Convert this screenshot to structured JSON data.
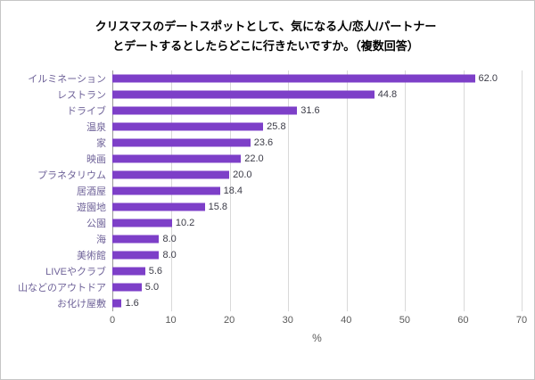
{
  "title": {
    "line1": "クリスマスのデートスポットとして、気になる人/恋人/パートナー",
    "line2": "とデートするとしたらどこに行きたいですか。（複数回答）"
  },
  "chart_data": {
    "type": "bar",
    "orientation": "horizontal",
    "title": "クリスマスのデートスポットとして、気になる人/恋人/パートナーとデートするとしたらどこに行きたいですか。（複数回答）",
    "categories": [
      "イルミネーション",
      "レストラン",
      "ドライブ",
      "温泉",
      "家",
      "映画",
      "プラネタリウム",
      "居酒屋",
      "遊園地",
      "公園",
      "海",
      "美術館",
      "LIVEやクラブ",
      "山などのアウトドア",
      "お化け屋敷"
    ],
    "values": [
      62.0,
      44.8,
      31.6,
      25.8,
      23.6,
      22.0,
      20.0,
      18.4,
      15.8,
      10.2,
      8.0,
      8.0,
      5.6,
      5.0,
      1.6
    ],
    "xlabel": "%",
    "xlim": [
      0,
      70
    ],
    "xticks": [
      0,
      10,
      20,
      30,
      40,
      50,
      60,
      70
    ],
    "bar_color": "#7d3fc8",
    "grid": true,
    "legend": false
  }
}
